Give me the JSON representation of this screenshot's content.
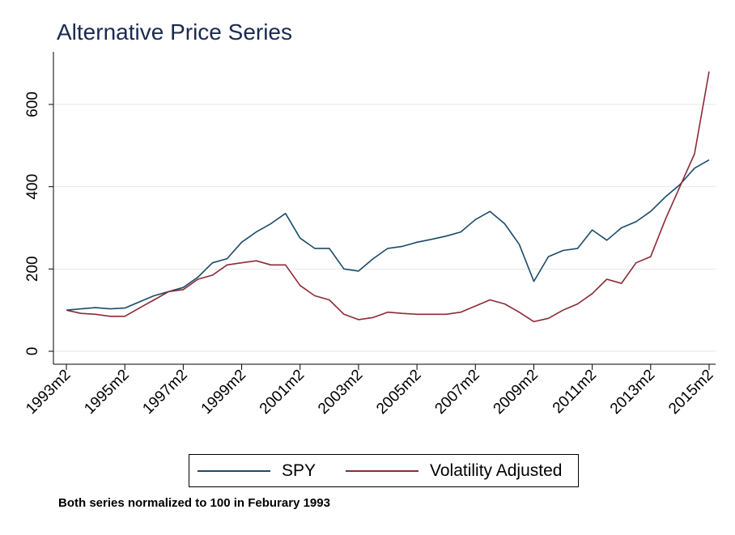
{
  "chart_data": {
    "type": "line",
    "title": "Alternative Price Series",
    "note": "Both series normalized to 100 in Feburary 1993",
    "xlabel": "",
    "ylabel": "",
    "ylim": [
      -30,
      720
    ],
    "yticks": [
      0,
      200,
      400,
      600
    ],
    "xlim": [
      "1993m2",
      "2015m2"
    ],
    "xticks": [
      "1993m2",
      "1995m2",
      "1997m2",
      "1999m2",
      "2001m2",
      "2003m2",
      "2005m2",
      "2007m2",
      "2009m2",
      "2011m2",
      "2013m2",
      "2015m2"
    ],
    "grid": true,
    "legend_position": "bottom",
    "series": [
      {
        "name": "SPY",
        "color": "#1a4a6b",
        "points": [
          [
            "1993m2",
            100
          ],
          [
            "1993m8",
            103
          ],
          [
            "1994m2",
            106
          ],
          [
            "1994m8",
            103
          ],
          [
            "1995m2",
            105
          ],
          [
            "1995m8",
            120
          ],
          [
            "1996m2",
            135
          ],
          [
            "1996m8",
            145
          ],
          [
            "1997m2",
            155
          ],
          [
            "1997m8",
            180
          ],
          [
            "1998m2",
            215
          ],
          [
            "1998m8",
            225
          ],
          [
            "1999m2",
            265
          ],
          [
            "1999m8",
            290
          ],
          [
            "2000m2",
            310
          ],
          [
            "2000m8",
            335
          ],
          [
            "2001m2",
            275
          ],
          [
            "2001m8",
            250
          ],
          [
            "2002m2",
            250
          ],
          [
            "2002m8",
            200
          ],
          [
            "2003m2",
            195
          ],
          [
            "2003m8",
            225
          ],
          [
            "2004m2",
            250
          ],
          [
            "2004m8",
            255
          ],
          [
            "2005m2",
            265
          ],
          [
            "2005m8",
            272
          ],
          [
            "2006m2",
            280
          ],
          [
            "2006m8",
            290
          ],
          [
            "2007m2",
            320
          ],
          [
            "2007m8",
            340
          ],
          [
            "2008m2",
            310
          ],
          [
            "2008m8",
            260
          ],
          [
            "2009m2",
            170
          ],
          [
            "2009m8",
            230
          ],
          [
            "2010m2",
            245
          ],
          [
            "2010m8",
            250
          ],
          [
            "2011m2",
            295
          ],
          [
            "2011m8",
            270
          ],
          [
            "2012m2",
            300
          ],
          [
            "2012m8",
            315
          ],
          [
            "2013m2",
            340
          ],
          [
            "2013m8",
            375
          ],
          [
            "2014m2",
            405
          ],
          [
            "2014m8",
            445
          ],
          [
            "2015m2",
            465
          ]
        ]
      },
      {
        "name": "Volatility Adjusted",
        "color": "#8b2a35",
        "points": [
          [
            "1993m2",
            100
          ],
          [
            "1993m8",
            92
          ],
          [
            "1994m2",
            90
          ],
          [
            "1994m8",
            85
          ],
          [
            "1995m2",
            85
          ],
          [
            "1995m8",
            105
          ],
          [
            "1996m2",
            125
          ],
          [
            "1996m8",
            145
          ],
          [
            "1997m2",
            150
          ],
          [
            "1997m8",
            175
          ],
          [
            "1998m2",
            185
          ],
          [
            "1998m8",
            210
          ],
          [
            "1999m2",
            215
          ],
          [
            "1999m8",
            220
          ],
          [
            "2000m2",
            210
          ],
          [
            "2000m8",
            210
          ],
          [
            "2001m2",
            160
          ],
          [
            "2001m8",
            135
          ],
          [
            "2002m2",
            125
          ],
          [
            "2002m8",
            90
          ],
          [
            "2003m2",
            77
          ],
          [
            "2003m8",
            82
          ],
          [
            "2004m2",
            95
          ],
          [
            "2004m8",
            92
          ],
          [
            "2005m2",
            90
          ],
          [
            "2005m8",
            90
          ],
          [
            "2006m2",
            90
          ],
          [
            "2006m8",
            95
          ],
          [
            "2007m2",
            110
          ],
          [
            "2007m8",
            125
          ],
          [
            "2008m2",
            115
          ],
          [
            "2008m8",
            95
          ],
          [
            "2009m2",
            72
          ],
          [
            "2009m8",
            80
          ],
          [
            "2010m2",
            100
          ],
          [
            "2010m8",
            115
          ],
          [
            "2011m2",
            140
          ],
          [
            "2011m8",
            175
          ],
          [
            "2012m2",
            165
          ],
          [
            "2012m8",
            215
          ],
          [
            "2013m2",
            230
          ],
          [
            "2013m8",
            320
          ],
          [
            "2014m2",
            400
          ],
          [
            "2014m8",
            480
          ],
          [
            "2015m2",
            680
          ]
        ]
      }
    ]
  }
}
